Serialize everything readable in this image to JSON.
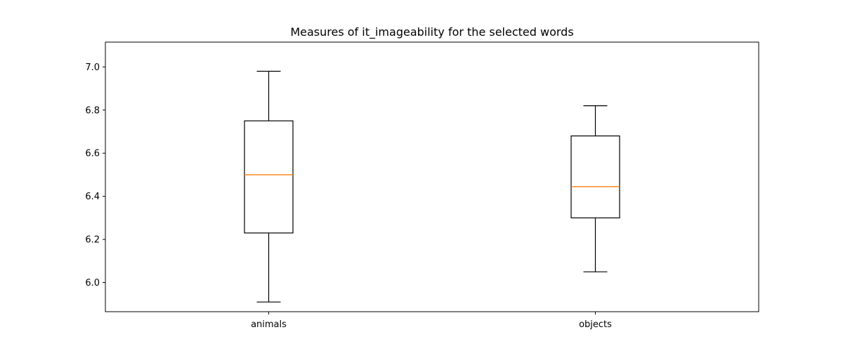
{
  "chart_data": {
    "type": "box",
    "title": "Measures of it_imageability for the selected words",
    "xlabel": "",
    "ylabel": "",
    "ylim": [
      5.865,
      7.115
    ],
    "yticks": [
      6.0,
      6.2,
      6.4,
      6.6,
      6.8,
      7.0
    ],
    "ytick_labels": [
      "6.0",
      "6.2",
      "6.4",
      "6.6",
      "6.8",
      "7.0"
    ],
    "categories": [
      "animals",
      "objects"
    ],
    "boxes": [
      {
        "category": "animals",
        "whisker_low": 5.91,
        "q1": 6.23,
        "median": 6.5,
        "q3": 6.75,
        "whisker_high": 6.98
      },
      {
        "category": "objects",
        "whisker_low": 6.05,
        "q1": 6.3,
        "median": 6.445,
        "q3": 6.68,
        "whisker_high": 6.82
      }
    ],
    "grid": false,
    "colors": {
      "box": "#000000",
      "median": "#ff7f0e",
      "axes": "#000000"
    }
  }
}
